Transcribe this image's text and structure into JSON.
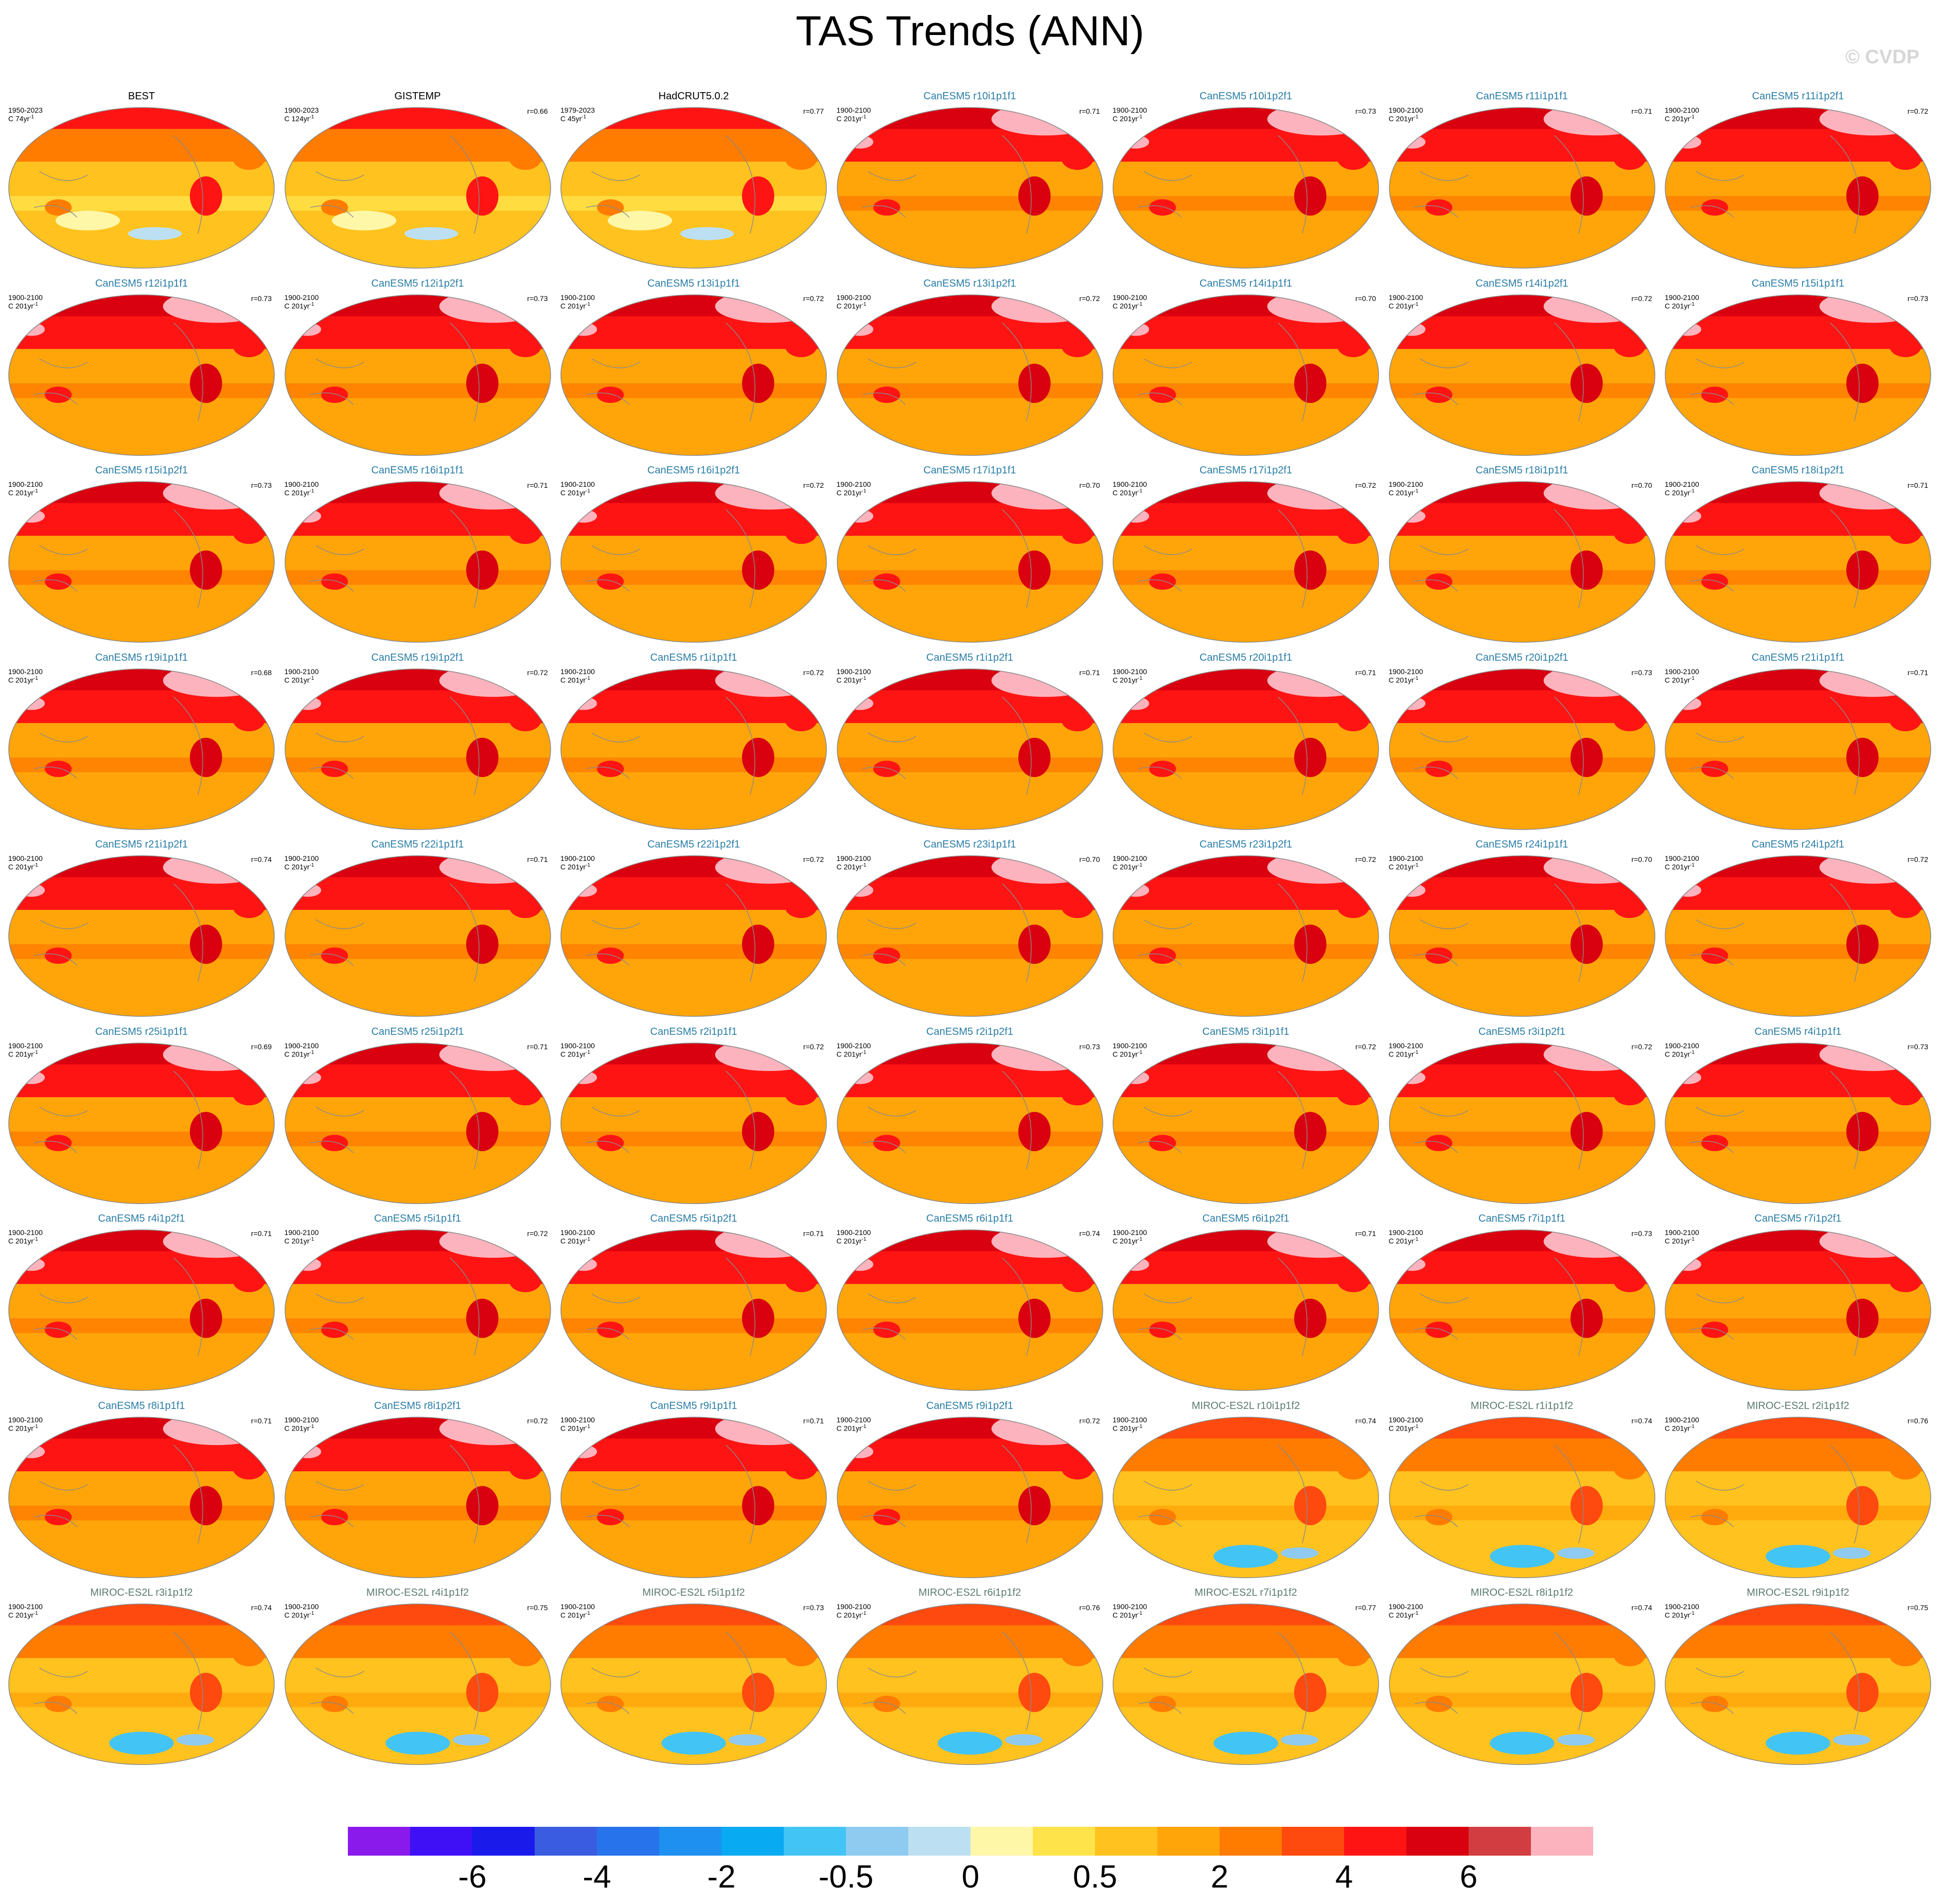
{
  "title": "TAS Trends (ANN)",
  "watermark": "© CVDP",
  "colorbar": {
    "colors": [
      "#8a1aeb",
      "#3f0ff5",
      "#1a1aeb",
      "#3a5ce0",
      "#2673eb",
      "#1e90f0",
      "#08aaf2",
      "#42c4f5",
      "#8fcbf0",
      "#bce0f2",
      "#fff7a8",
      "#ffe34a",
      "#ffc21f",
      "#ffa50a",
      "#ff7c00",
      "#ff4a0f",
      "#ff1414",
      "#d9000f",
      "#d13d41",
      "#fcb3bd"
    ],
    "labels": [
      {
        "text": "-6",
        "boundary": 2
      },
      {
        "text": "-4",
        "boundary": 4
      },
      {
        "text": "-2",
        "boundary": 6
      },
      {
        "text": "-0.5",
        "boundary": 8
      },
      {
        "text": "0",
        "boundary": 10
      },
      {
        "text": "0.5",
        "boundary": 12
      },
      {
        "text": "2",
        "boundary": 14
      },
      {
        "text": "4",
        "boundary": 16
      },
      {
        "text": "6",
        "boundary": 18
      }
    ]
  },
  "panels": [
    {
      "title": "BEST",
      "group": "obs",
      "years": "1950-2023",
      "units": "C 74yr",
      "corr": ""
    },
    {
      "title": "GISTEMP",
      "group": "obs",
      "years": "1900-2023",
      "units": "C 124yr",
      "corr": "r=0.66"
    },
    {
      "title": "HadCRUT5.0.2",
      "group": "obs",
      "years": "1979-2023",
      "units": "C 45yr",
      "corr": "r=0.77"
    },
    {
      "title": "CanESM5 r10i1p1f1",
      "group": "canesm",
      "years": "1900-2100",
      "units": "C 201yr",
      "corr": "r=0.71"
    },
    {
      "title": "CanESM5 r10i1p2f1",
      "group": "canesm",
      "years": "1900-2100",
      "units": "C 201yr",
      "corr": "r=0.73"
    },
    {
      "title": "CanESM5 r11i1p1f1",
      "group": "canesm",
      "years": "1900-2100",
      "units": "C 201yr",
      "corr": "r=0.71"
    },
    {
      "title": "CanESM5 r11i1p2f1",
      "group": "canesm",
      "years": "1900-2100",
      "units": "C 201yr",
      "corr": "r=0.72"
    },
    {
      "title": "CanESM5 r12i1p1f1",
      "group": "canesm",
      "years": "1900-2100",
      "units": "C 201yr",
      "corr": "r=0.73"
    },
    {
      "title": "CanESM5 r12i1p2f1",
      "group": "canesm",
      "years": "1900-2100",
      "units": "C 201yr",
      "corr": "r=0.73"
    },
    {
      "title": "CanESM5 r13i1p1f1",
      "group": "canesm",
      "years": "1900-2100",
      "units": "C 201yr",
      "corr": "r=0.72"
    },
    {
      "title": "CanESM5 r13i1p2f1",
      "group": "canesm",
      "years": "1900-2100",
      "units": "C 201yr",
      "corr": "r=0.72"
    },
    {
      "title": "CanESM5 r14i1p1f1",
      "group": "canesm",
      "years": "1900-2100",
      "units": "C 201yr",
      "corr": "r=0.70"
    },
    {
      "title": "CanESM5 r14i1p2f1",
      "group": "canesm",
      "years": "1900-2100",
      "units": "C 201yr",
      "corr": "r=0.72"
    },
    {
      "title": "CanESM5 r15i1p1f1",
      "group": "canesm",
      "years": "1900-2100",
      "units": "C 201yr",
      "corr": "r=0.73"
    },
    {
      "title": "CanESM5 r15i1p2f1",
      "group": "canesm",
      "years": "1900-2100",
      "units": "C 201yr",
      "corr": "r=0.73"
    },
    {
      "title": "CanESM5 r16i1p1f1",
      "group": "canesm",
      "years": "1900-2100",
      "units": "C 201yr",
      "corr": "r=0.71"
    },
    {
      "title": "CanESM5 r16i1p2f1",
      "group": "canesm",
      "years": "1900-2100",
      "units": "C 201yr",
      "corr": "r=0.72"
    },
    {
      "title": "CanESM5 r17i1p1f1",
      "group": "canesm",
      "years": "1900-2100",
      "units": "C 201yr",
      "corr": "r=0.70"
    },
    {
      "title": "CanESM5 r17i1p2f1",
      "group": "canesm",
      "years": "1900-2100",
      "units": "C 201yr",
      "corr": "r=0.72"
    },
    {
      "title": "CanESM5 r18i1p1f1",
      "group": "canesm",
      "years": "1900-2100",
      "units": "C 201yr",
      "corr": "r=0.70"
    },
    {
      "title": "CanESM5 r18i1p2f1",
      "group": "canesm",
      "years": "1900-2100",
      "units": "C 201yr",
      "corr": "r=0.71"
    },
    {
      "title": "CanESM5 r19i1p1f1",
      "group": "canesm",
      "years": "1900-2100",
      "units": "C 201yr",
      "corr": "r=0.68"
    },
    {
      "title": "CanESM5 r19i1p2f1",
      "group": "canesm",
      "years": "1900-2100",
      "units": "C 201yr",
      "corr": "r=0.72"
    },
    {
      "title": "CanESM5 r1i1p1f1",
      "group": "canesm",
      "years": "1900-2100",
      "units": "C 201yr",
      "corr": "r=0.72"
    },
    {
      "title": "CanESM5 r1i1p2f1",
      "group": "canesm",
      "years": "1900-2100",
      "units": "C 201yr",
      "corr": "r=0.71"
    },
    {
      "title": "CanESM5 r20i1p1f1",
      "group": "canesm",
      "years": "1900-2100",
      "units": "C 201yr",
      "corr": "r=0.71"
    },
    {
      "title": "CanESM5 r20i1p2f1",
      "group": "canesm",
      "years": "1900-2100",
      "units": "C 201yr",
      "corr": "r=0.73"
    },
    {
      "title": "CanESM5 r21i1p1f1",
      "group": "canesm",
      "years": "1900-2100",
      "units": "C 201yr",
      "corr": "r=0.71"
    },
    {
      "title": "CanESM5 r21i1p2f1",
      "group": "canesm",
      "years": "1900-2100",
      "units": "C 201yr",
      "corr": "r=0.74"
    },
    {
      "title": "CanESM5 r22i1p1f1",
      "group": "canesm",
      "years": "1900-2100",
      "units": "C 201yr",
      "corr": "r=0.71"
    },
    {
      "title": "CanESM5 r22i1p2f1",
      "group": "canesm",
      "years": "1900-2100",
      "units": "C 201yr",
      "corr": "r=0.72"
    },
    {
      "title": "CanESM5 r23i1p1f1",
      "group": "canesm",
      "years": "1900-2100",
      "units": "C 201yr",
      "corr": "r=0.70"
    },
    {
      "title": "CanESM5 r23i1p2f1",
      "group": "canesm",
      "years": "1900-2100",
      "units": "C 201yr",
      "corr": "r=0.72"
    },
    {
      "title": "CanESM5 r24i1p1f1",
      "group": "canesm",
      "years": "1900-2100",
      "units": "C 201yr",
      "corr": "r=0.70"
    },
    {
      "title": "CanESM5 r24i1p2f1",
      "group": "canesm",
      "years": "1900-2100",
      "units": "C 201yr",
      "corr": "r=0.72"
    },
    {
      "title": "CanESM5 r25i1p1f1",
      "group": "canesm",
      "years": "1900-2100",
      "units": "C 201yr",
      "corr": "r=0.69"
    },
    {
      "title": "CanESM5 r25i1p2f1",
      "group": "canesm",
      "years": "1900-2100",
      "units": "C 201yr",
      "corr": "r=0.71"
    },
    {
      "title": "CanESM5 r2i1p1f1",
      "group": "canesm",
      "years": "1900-2100",
      "units": "C 201yr",
      "corr": "r=0.72"
    },
    {
      "title": "CanESM5 r2i1p2f1",
      "group": "canesm",
      "years": "1900-2100",
      "units": "C 201yr",
      "corr": "r=0.73"
    },
    {
      "title": "CanESM5 r3i1p1f1",
      "group": "canesm",
      "years": "1900-2100",
      "units": "C 201yr",
      "corr": "r=0.72"
    },
    {
      "title": "CanESM5 r3i1p2f1",
      "group": "canesm",
      "years": "1900-2100",
      "units": "C 201yr",
      "corr": "r=0.72"
    },
    {
      "title": "CanESM5 r4i1p1f1",
      "group": "canesm",
      "years": "1900-2100",
      "units": "C 201yr",
      "corr": "r=0.73"
    },
    {
      "title": "CanESM5 r4i1p2f1",
      "group": "canesm",
      "years": "1900-2100",
      "units": "C 201yr",
      "corr": "r=0.71"
    },
    {
      "title": "CanESM5 r5i1p1f1",
      "group": "canesm",
      "years": "1900-2100",
      "units": "C 201yr",
      "corr": "r=0.72"
    },
    {
      "title": "CanESM5 r5i1p2f1",
      "group": "canesm",
      "years": "1900-2100",
      "units": "C 201yr",
      "corr": "r=0.71"
    },
    {
      "title": "CanESM5 r6i1p1f1",
      "group": "canesm",
      "years": "1900-2100",
      "units": "C 201yr",
      "corr": "r=0.74"
    },
    {
      "title": "CanESM5 r6i1p2f1",
      "group": "canesm",
      "years": "1900-2100",
      "units": "C 201yr",
      "corr": "r=0.71"
    },
    {
      "title": "CanESM5 r7i1p1f1",
      "group": "canesm",
      "years": "1900-2100",
      "units": "C 201yr",
      "corr": "r=0.73"
    },
    {
      "title": "CanESM5 r7i1p2f1",
      "group": "canesm",
      "years": "1900-2100",
      "units": "C 201yr",
      "corr": ""
    },
    {
      "title": "CanESM5 r8i1p1f1",
      "group": "canesm",
      "years": "1900-2100",
      "units": "C 201yr",
      "corr": "r=0.71"
    },
    {
      "title": "CanESM5 r8i1p2f1",
      "group": "canesm",
      "years": "1900-2100",
      "units": "C 201yr",
      "corr": "r=0.72"
    },
    {
      "title": "CanESM5 r9i1p1f1",
      "group": "canesm",
      "years": "1900-2100",
      "units": "C 201yr",
      "corr": "r=0.71"
    },
    {
      "title": "CanESM5 r9i1p2f1",
      "group": "canesm",
      "years": "1900-2100",
      "units": "C 201yr",
      "corr": "r=0.72"
    },
    {
      "title": "MIROC-ES2L r10i1p1f2",
      "group": "miroc",
      "years": "1900-2100",
      "units": "C 201yr",
      "corr": "r=0.74"
    },
    {
      "title": "MIROC-ES2L r1i1p1f2",
      "group": "miroc",
      "years": "1900-2100",
      "units": "C 201yr",
      "corr": "r=0.74"
    },
    {
      "title": "MIROC-ES2L r2i1p1f2",
      "group": "miroc",
      "years": "1900-2100",
      "units": "C 201yr",
      "corr": "r=0.76"
    },
    {
      "title": "MIROC-ES2L r3i1p1f2",
      "group": "miroc",
      "years": "1900-2100",
      "units": "C 201yr",
      "corr": "r=0.74"
    },
    {
      "title": "MIROC-ES2L r4i1p1f2",
      "group": "miroc",
      "years": "1900-2100",
      "units": "C 201yr",
      "corr": "r=0.75"
    },
    {
      "title": "MIROC-ES2L r5i1p1f2",
      "group": "miroc",
      "years": "1900-2100",
      "units": "C 201yr",
      "corr": "r=0.73"
    },
    {
      "title": "MIROC-ES2L r6i1p1f2",
      "group": "miroc",
      "years": "1900-2100",
      "units": "C 201yr",
      "corr": "r=0.76"
    },
    {
      "title": "MIROC-ES2L r7i1p1f2",
      "group": "miroc",
      "years": "1900-2100",
      "units": "C 201yr",
      "corr": "r=0.77"
    },
    {
      "title": "MIROC-ES2L r8i1p1f2",
      "group": "miroc",
      "years": "1900-2100",
      "units": "C 201yr",
      "corr": "r=0.74"
    },
    {
      "title": "MIROC-ES2L r9i1p1f2",
      "group": "miroc",
      "years": "1900-2100",
      "units": "C 201yr",
      "corr": "r=0.75"
    }
  ]
}
